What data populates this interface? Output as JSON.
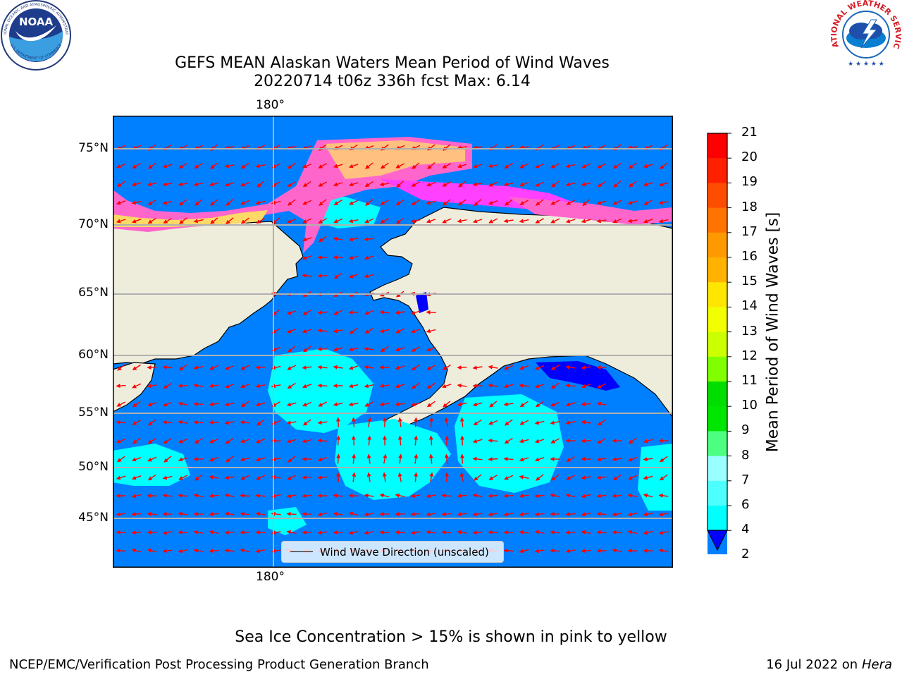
{
  "title": {
    "line1": "GEFS MEAN Alaskan Waters Mean Period of Wind Waves",
    "line2": "20220714 t06z 336h fcst   Max: 6.14"
  },
  "logos": {
    "noaa": "NOAA",
    "noaa_ring_top": "NATIONAL OCEANIC AND ATMOSPHERIC ADMINISTRATION",
    "noaa_ring_bottom": "U.S. DEPARTMENT OF COMMERCE",
    "nws_ring": "NATIONAL WEATHER SERVICE"
  },
  "map": {
    "lon_labels": {
      "top": "180°",
      "bottom": "180°"
    },
    "lat_labels": [
      "75°N",
      "70°N",
      "65°N",
      "60°N",
      "55°N",
      "50°N",
      "45°N"
    ],
    "legend_label": "Wind Wave Direction (unscaled)",
    "colors": {
      "ocean_main": "#0080ff",
      "ocean_high": "#00ffff",
      "land": "#eeecdb",
      "vector": "#ff0000",
      "ice": "#ff00ff"
    }
  },
  "colorbar": {
    "label": "Mean Period of Wind Waves [s]",
    "ticks": [
      "21",
      "20",
      "19",
      "18",
      "17",
      "16",
      "15",
      "14",
      "13",
      "12",
      "11",
      "10",
      "9",
      "8",
      "7",
      "6",
      "4",
      "2"
    ],
    "colors": [
      "#ff0000",
      "#ff2000",
      "#ff4d00",
      "#ff7300",
      "#ff9900",
      "#ffb300",
      "#ffe600",
      "#f2ff00",
      "#ccff00",
      "#80ff00",
      "#00dd00",
      "#00e600",
      "#4dff80",
      "#99ffff",
      "#4dffff",
      "#00ffff",
      "#0080ff"
    ],
    "extend_color": "#0000ff"
  },
  "caption": "Sea Ice Concentration > 15% is shown in pink to yellow",
  "footer": {
    "left": "NCEP/EMC/Verification Post Processing Product Generation Branch",
    "right_date": "16 Jul 2022 on ",
    "right_host": "Hera"
  }
}
